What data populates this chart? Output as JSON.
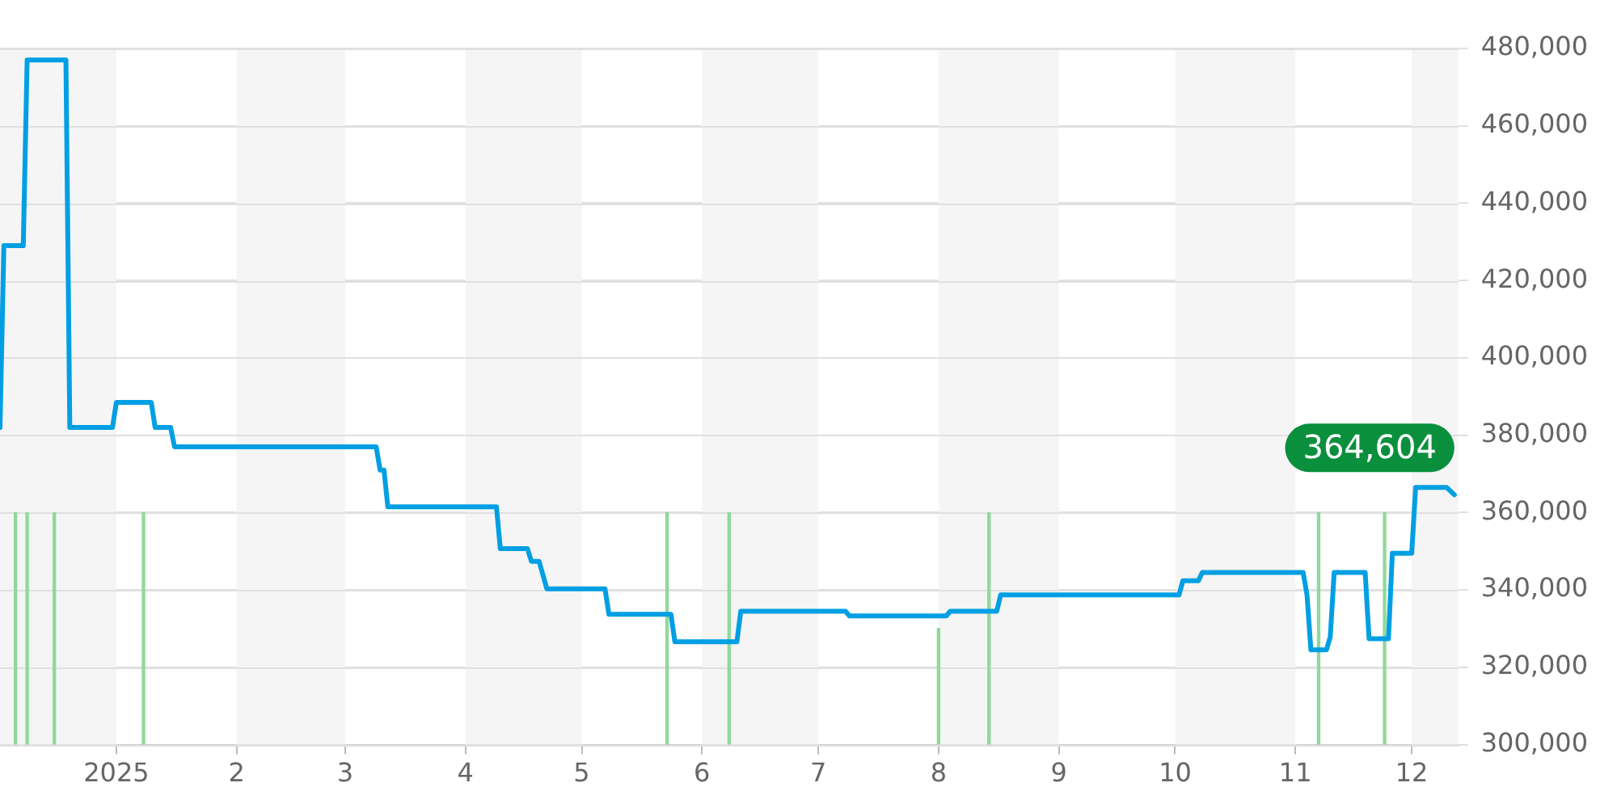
{
  "chart_data": {
    "type": "line",
    "legend": false,
    "grid": "y",
    "marker": "none",
    "line_style": "solid",
    "xlim": [
      "2024-12-02",
      "2025-12-13"
    ],
    "xticks": [
      {
        "value": "2025-01-01",
        "label": "2025"
      },
      {
        "value": "2025-02-01",
        "label": "2"
      },
      {
        "value": "2025-03-01",
        "label": "3"
      },
      {
        "value": "2025-04-01",
        "label": "4"
      },
      {
        "value": "2025-05-01",
        "label": "5"
      },
      {
        "value": "2025-06-01",
        "label": "6"
      },
      {
        "value": "2025-07-01",
        "label": "7"
      },
      {
        "value": "2025-08-01",
        "label": "8"
      },
      {
        "value": "2025-09-01",
        "label": "9"
      },
      {
        "value": "2025-10-01",
        "label": "10"
      },
      {
        "value": "2025-11-01",
        "label": "11"
      },
      {
        "value": "2025-12-01",
        "label": "12"
      }
    ],
    "ylim": [
      300000,
      480000
    ],
    "yticks": [
      {
        "value": 300000,
        "label": "300,000"
      },
      {
        "value": 320000,
        "label": "320,000"
      },
      {
        "value": 340000,
        "label": "340,000"
      },
      {
        "value": 360000,
        "label": "360,000"
      },
      {
        "value": 380000,
        "label": "380,000"
      },
      {
        "value": 400000,
        "label": "400,000"
      },
      {
        "value": 420000,
        "label": "420,000"
      },
      {
        "value": 440000,
        "label": "440,000"
      },
      {
        "value": 460000,
        "label": "460,000"
      },
      {
        "value": 480000,
        "label": "480,000"
      }
    ],
    "bands": [
      {
        "axis": "x",
        "from": "2024-12-02",
        "to": "2025-01-01",
        "color": "#f5f5f5"
      },
      {
        "axis": "x",
        "from": "2025-02-01",
        "to": "2025-03-01",
        "color": "#f5f5f5"
      },
      {
        "axis": "x",
        "from": "2025-04-01",
        "to": "2025-05-01",
        "color": "#f5f5f5"
      },
      {
        "axis": "x",
        "from": "2025-06-01",
        "to": "2025-07-01",
        "color": "#f5f5f5"
      },
      {
        "axis": "x",
        "from": "2025-08-01",
        "to": "2025-09-01",
        "color": "#f5f5f5"
      },
      {
        "axis": "x",
        "from": "2025-10-01",
        "to": "2025-11-01",
        "color": "#f5f5f5"
      },
      {
        "axis": "x",
        "from": "2025-12-01",
        "to": "2025-12-13",
        "color": "#f5f5f5"
      }
    ],
    "series": [
      {
        "type": "bar",
        "color": "#8fd99a",
        "x": [
          "2024-12-06",
          "2024-12-09",
          "2024-12-16",
          "2025-01-08",
          "2025-05-23",
          "2025-06-08",
          "2025-08-01",
          "2025-08-14",
          "2025-11-07",
          "2025-11-24"
        ],
        "values": [
          360000,
          360000,
          360000,
          360000,
          360000,
          360000,
          330000,
          360000,
          360000,
          360000
        ]
      },
      {
        "color": "#009fe3",
        "x": [
          "2024-12-02",
          "2024-12-03",
          "2024-12-08",
          "2024-12-09",
          "2024-12-19",
          "2024-12-20",
          "2024-12-31",
          "2025-01-01",
          "2025-01-10",
          "2025-01-11",
          "2025-01-15",
          "2025-01-16",
          "2025-03-09",
          "2025-03-10",
          "2025-03-11",
          "2025-03-12",
          "2025-04-09",
          "2025-04-10",
          "2025-04-17",
          "2025-04-18",
          "2025-04-20",
          "2025-04-22",
          "2025-05-07",
          "2025-05-08",
          "2025-05-24",
          "2025-05-25",
          "2025-06-10",
          "2025-06-11",
          "2025-07-08",
          "2025-07-09",
          "2025-08-03",
          "2025-08-04",
          "2025-08-16",
          "2025-08-17",
          "2025-10-02",
          "2025-10-03",
          "2025-10-07",
          "2025-10-08",
          "2025-11-03",
          "2025-11-04",
          "2025-11-05",
          "2025-11-09",
          "2025-11-10",
          "2025-11-11",
          "2025-11-19",
          "2025-11-20",
          "2025-11-25",
          "2025-11-26",
          "2025-12-01",
          "2025-12-02",
          "2025-12-10",
          "2025-12-12"
        ],
        "values": [
          382000,
          429000,
          429000,
          477000,
          477000,
          382000,
          382000,
          388500,
          388500,
          382000,
          382000,
          377000,
          377000,
          371000,
          371000,
          361500,
          361500,
          350700,
          350700,
          347400,
          347400,
          340300,
          340300,
          333700,
          333700,
          326600,
          326600,
          334500,
          334500,
          333300,
          333300,
          334500,
          334500,
          338700,
          338700,
          342400,
          342400,
          344500,
          344500,
          338700,
          324500,
          324500,
          327900,
          344500,
          344500,
          327400,
          327400,
          349500,
          349500,
          366500,
          366500,
          364604
        ]
      }
    ],
    "annotations": [
      {
        "text": "364,604",
        "x": "2025-12-12",
        "y": 364604
      }
    ]
  }
}
